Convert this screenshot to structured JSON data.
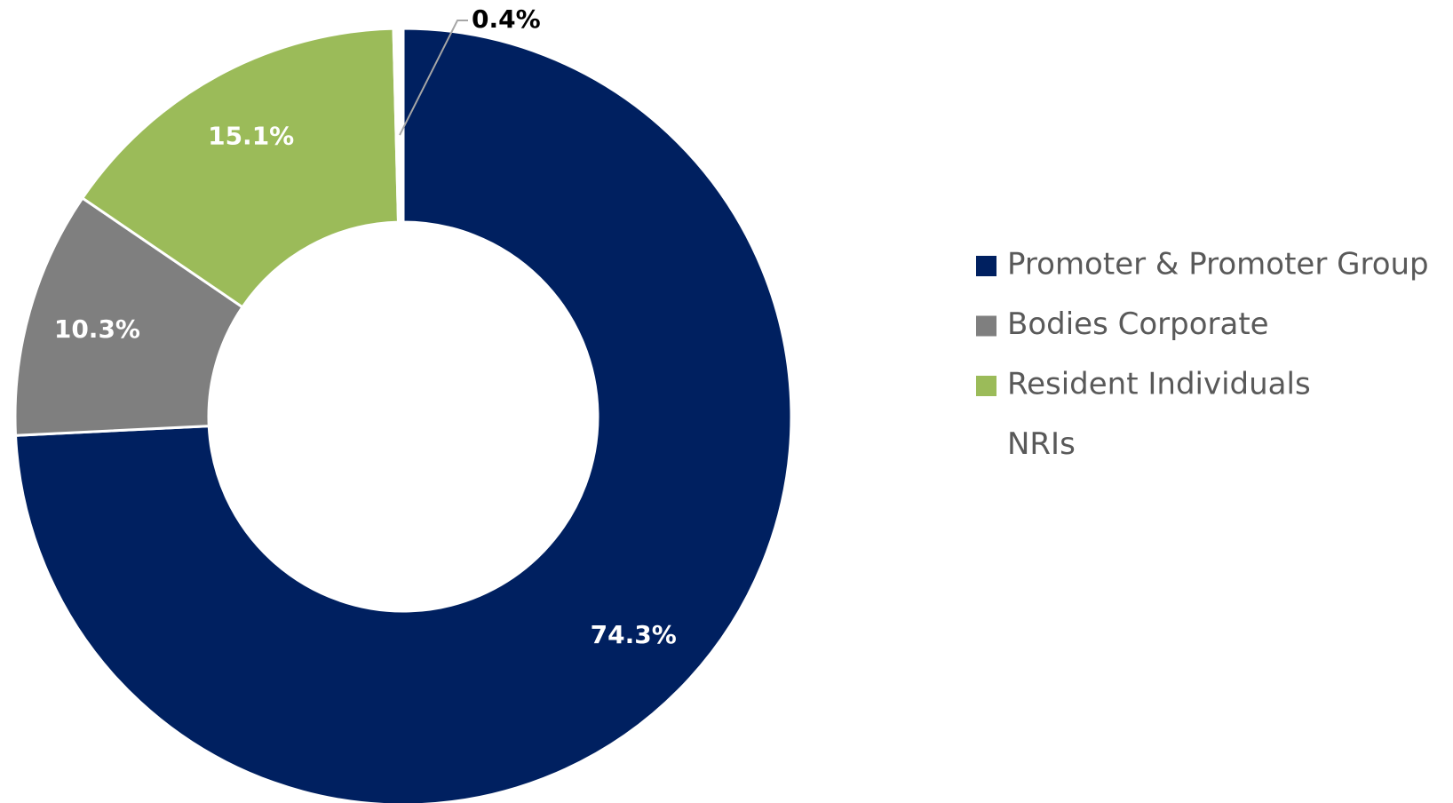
{
  "chart_data": {
    "type": "donut",
    "categories": [
      "Promoter & Promoter Group",
      "Bodies Corporate",
      "Resident Individuals",
      "NRIs"
    ],
    "values": [
      74.3,
      10.3,
      15.1,
      0.4
    ],
    "value_labels": [
      "74.3%",
      "10.3%",
      "15.1%",
      "0.4%"
    ],
    "colors": [
      "#002060",
      "#7f7f7f",
      "#9bbb59",
      "#ffffff"
    ],
    "legend": "right"
  }
}
